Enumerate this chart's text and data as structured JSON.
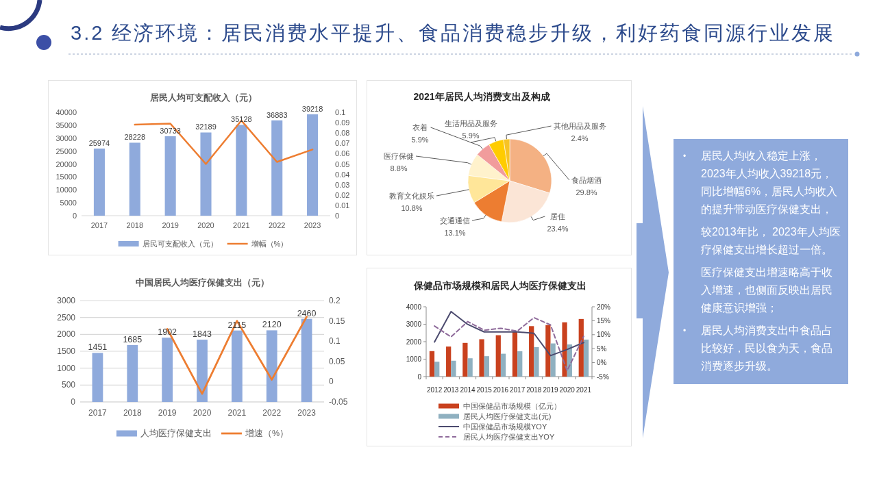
{
  "chart_data": [
    {
      "type": "other",
      "title": "3.2 经济环境：居民消费水平提升、食品消费稳步升级，利好药食同源行业发展"
    },
    {
      "type": "bar",
      "title": "居民人均可支配收入（元）",
      "categories": [
        "2017",
        "2018",
        "2019",
        "2020",
        "2021",
        "2022",
        "2023"
      ],
      "series": [
        {
          "name": "居民可支配收入（元）",
          "type": "bar",
          "color": "#8faadc",
          "values": [
            25974,
            28228,
            30733,
            32189,
            35128,
            36883,
            39218
          ],
          "value_labels": [
            "25974",
            "28228",
            "30733",
            "32189",
            "35128",
            "36883",
            "39218"
          ]
        },
        {
          "name": "增幅（%）",
          "type": "line",
          "axis": "y2",
          "color": "#ed7d31",
          "values": [
            null,
            0.088,
            0.089,
            0.05,
            0.092,
            0.052,
            0.064
          ]
        }
      ],
      "ylim": [
        0,
        40000
      ],
      "yticks": [
        0,
        5000,
        10000,
        15000,
        20000,
        25000,
        30000,
        35000,
        40000
      ],
      "y2lim": [
        0,
        0.1
      ],
      "y2ticks": [
        0,
        0.01,
        0.02,
        0.03,
        0.04,
        0.05,
        0.06,
        0.07,
        0.08,
        0.09,
        0.1
      ],
      "legend": "bottom"
    },
    {
      "type": "pie",
      "title": "2021年居民人均消费支出及构成",
      "categories": [
        "食品烟酒",
        "居住",
        "交通通信",
        "教育文化娱乐",
        "医疗保健",
        "衣着",
        "生活用品及服务",
        "其他用品及服务"
      ],
      "values": [
        29.8,
        23.4,
        13.1,
        10.8,
        8.8,
        5.9,
        5.9,
        2.4
      ],
      "colors": [
        "#f4b183",
        "#fbe5d6",
        "#ed7d31",
        "#ffe699",
        "#fff2cc",
        "#f19c9c",
        "#ffcc00",
        "#f7c325"
      ],
      "value_labels": [
        "29.8%",
        "23.4%",
        "13.1%",
        "10.8%",
        "8.8%",
        "5.9%",
        "5.9%",
        "2.4%"
      ]
    },
    {
      "type": "bar",
      "title": "中国居民人均医疗保健支出（元）",
      "categories": [
        "2017",
        "2018",
        "2019",
        "2020",
        "2021",
        "2022",
        "2023"
      ],
      "series": [
        {
          "name": "人均医疗保健支出",
          "type": "bar",
          "color": "#8faadc",
          "values": [
            1451,
            1685,
            1902,
            1843,
            2115,
            2120,
            2460
          ],
          "value_labels": [
            "1451",
            "1685",
            "1902",
            "1843",
            "2115",
            "2120",
            "2460"
          ]
        },
        {
          "name": "增速（%）",
          "type": "line",
          "axis": "y2",
          "color": "#ed7d31",
          "values": [
            null,
            null,
            0.13,
            -0.03,
            0.15,
            0.005,
            0.16
          ]
        }
      ],
      "ylim": [
        0,
        3000
      ],
      "yticks": [
        0,
        500,
        1000,
        1500,
        2000,
        2500,
        3000
      ],
      "y2lim": [
        -0.05,
        0.2
      ],
      "y2ticks": [
        -0.05,
        0,
        0.05,
        0.1,
        0.15,
        0.2
      ],
      "grid": "y",
      "legend": "bottom"
    },
    {
      "type": "bar",
      "title": "保健品市场规模和居民人均医疗保健支出",
      "categories": [
        "2012",
        "2013",
        "2014",
        "2015",
        "2016",
        "2017",
        "2018",
        "2019",
        "2020",
        "2021"
      ],
      "series": [
        {
          "name": "中国保健品市场规模（亿元）",
          "type": "bar",
          "color": "#c9411e",
          "values": [
            1460,
            1720,
            1930,
            2140,
            2370,
            2590,
            2890,
            2950,
            3110,
            3300
          ]
        },
        {
          "name": "居民人均医疗保健支出(元)",
          "type": "bar",
          "color": "#8fb0c0",
          "values": [
            850,
            910,
            1050,
            1170,
            1310,
            1450,
            1690,
            1900,
            1840,
            2120
          ]
        },
        {
          "name": "中国保健品市场规模YOY",
          "type": "line",
          "axis": "y2",
          "color": "#4b4a6e",
          "values": [
            7.4,
            18.3,
            13.7,
            11.0,
            11.0,
            11.0,
            10.5,
            2.5,
            4.7,
            7.2
          ]
        },
        {
          "name": "居民人均医疗保健支出YOY",
          "type": "line",
          "axis": "y2",
          "color": "#8e6a9a",
          "line_style": "dashed",
          "values": [
            13.1,
            9.2,
            14.7,
            11.6,
            12.3,
            11.3,
            16.1,
            13.5,
            -2.9,
            9.4
          ]
        }
      ],
      "ylim": [
        0,
        4000
      ],
      "yticks": [
        0,
        1000,
        2000,
        3000,
        4000
      ],
      "y2lim": [
        -5,
        20
      ],
      "y2ticks": [
        {
          "value": -5,
          "label": "-5%"
        },
        {
          "value": 0,
          "label": "0%"
        },
        {
          "value": 5,
          "label": "5%"
        },
        {
          "value": 10,
          "label": "10%"
        },
        {
          "value": 15,
          "label": "15%"
        },
        {
          "value": 20,
          "label": "20%"
        }
      ],
      "legend": "bottom"
    },
    {
      "type": "other",
      "annotations": [
        "•\t居民人均收入稳定上涨，2023年人均收入39218元，同比增幅6%，居民人均收入的提升带动医疗保健支出，",
        "较2013年比， 2023年人均医疗保健支出增长超过一倍。",
        "医疗保健支出增速略高于收入增速，也侧面反映出居民健康意识增强；",
        "•\t居民人均消费支出中食品占比较好，民以食为天，食品消费逐步升级。"
      ]
    }
  ]
}
